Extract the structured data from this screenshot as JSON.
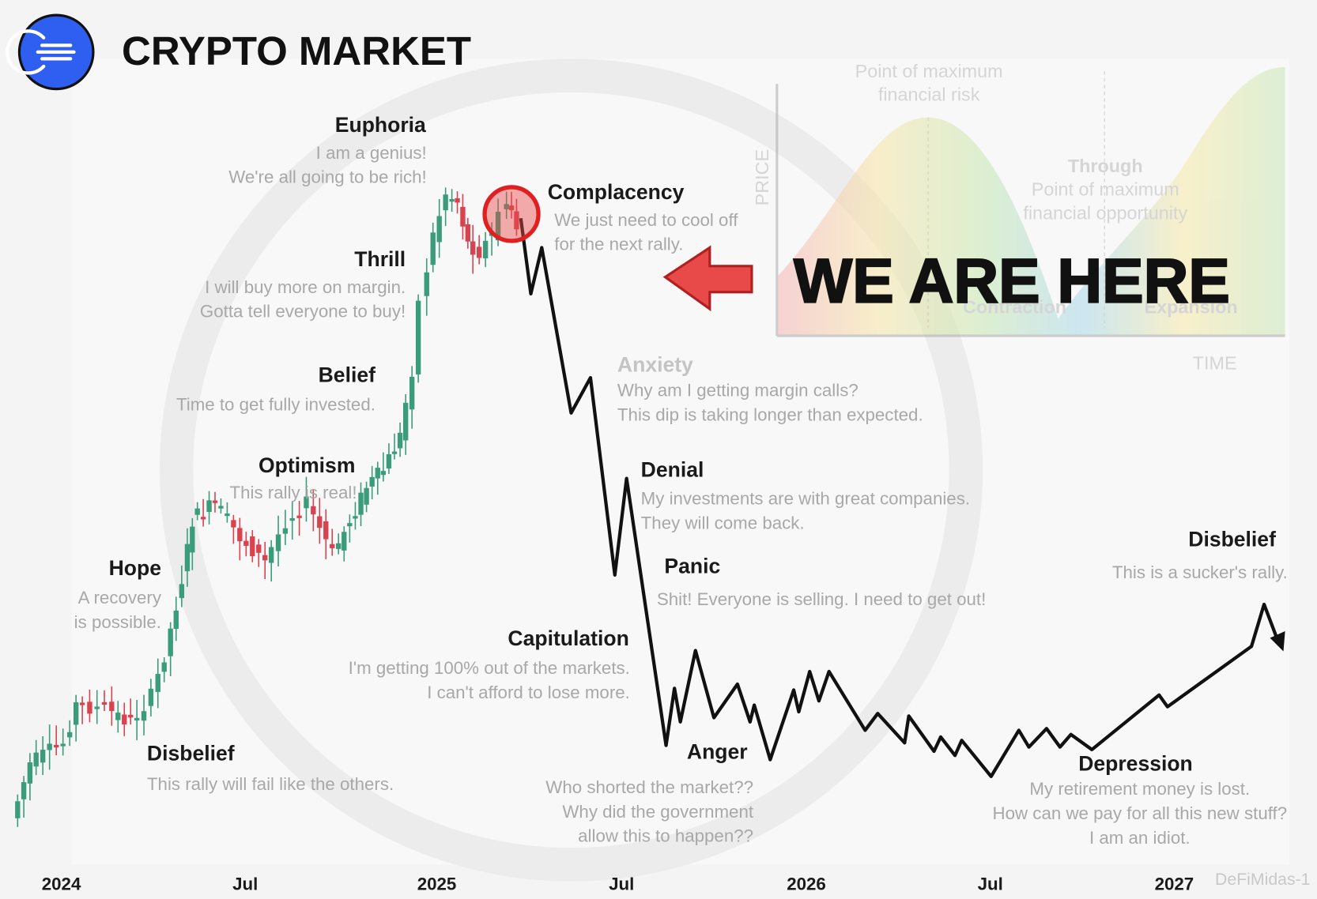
{
  "header": {
    "title": "CRYPTO MARKET"
  },
  "callout": "WE ARE HERE",
  "phases": [
    {
      "label": "Euphoria",
      "lines": [
        "I am a genius!",
        "We're all going to be rich!"
      ]
    },
    {
      "label": "Complacency",
      "lines": [
        "We just need to cool off",
        "for the next rally."
      ]
    },
    {
      "label": "Thrill",
      "lines": [
        "I will buy more on margin.",
        "Gotta tell everyone to buy!"
      ]
    },
    {
      "label": "Belief",
      "lines": [
        "Time to get fully invested."
      ]
    },
    {
      "label": "Optimism",
      "lines": [
        "This rally is real!"
      ]
    },
    {
      "label": "Hope",
      "lines": [
        "A recovery",
        "is possible."
      ]
    },
    {
      "label": "Disbelief",
      "lines": [
        "This rally will fail like the others."
      ]
    },
    {
      "label": "Anxiety",
      "lines": [
        "Why am I getting margin calls?",
        "This dip is taking longer than expected."
      ]
    },
    {
      "label": "Denial",
      "lines": [
        "My investments are with great companies.",
        "They will come back."
      ]
    },
    {
      "label": "Panic",
      "lines": [
        "Shit! Everyone is selling. I need to get out!"
      ]
    },
    {
      "label": "Capitulation",
      "lines": [
        "I'm getting 100% out of the markets.",
        "I can't afford to lose more."
      ]
    },
    {
      "label": "Anger",
      "lines": [
        "Who shorted the market??",
        "Why did the government",
        "allow this to happen??"
      ]
    },
    {
      "label": "Depression",
      "lines": [
        "My retirement money is lost.",
        "How can we pay for all this new stuff?",
        "I am an idiot."
      ]
    },
    {
      "label": "Disbelief",
      "lines": [
        "This is a sucker's rally."
      ]
    }
  ],
  "x_axis": {
    "labels": [
      "2024",
      "Jul",
      "2025",
      "Jul",
      "2026",
      "Jul",
      "2027"
    ]
  },
  "inset": {
    "y_label": "PRICE",
    "x_label": "TIME",
    "peak": [
      "Point of maximum",
      "financial risk"
    ],
    "trough": [
      "Through",
      "Point of maximum",
      "financial opportunity"
    ],
    "phases": [
      "Contraction",
      "Expansion"
    ]
  },
  "watermark": "DeFiMidas-1"
}
